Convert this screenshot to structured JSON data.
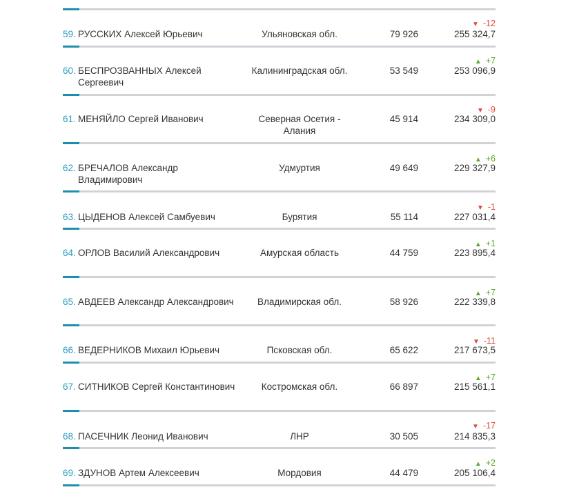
{
  "rows": [
    {
      "num": "59.",
      "name": "РУССКИХ Алексей Юрьевич",
      "region": "Ульяновская обл.",
      "votes": "79 926",
      "income": "255 324,7",
      "dir": "down",
      "arrow": "▼",
      "change": "-12"
    },
    {
      "num": "60.",
      "name": "БЕСПРОЗВАННЫХ Алексей Сергеевич",
      "region": "Калининградская обл.",
      "votes": "53 549",
      "income": "253 096,9",
      "dir": "up",
      "arrow": "▲",
      "change": "+7"
    },
    {
      "num": "61.",
      "name": "МЕНЯЙЛО Сергей Иванович",
      "region": "Северная Осетия - Алания",
      "votes": "45 914",
      "income": "234 309,0",
      "dir": "down",
      "arrow": "▼",
      "change": "-9"
    },
    {
      "num": "62.",
      "name": "БРЕЧАЛОВ Александр Владимирович",
      "region": "Удмуртия",
      "votes": "49 649",
      "income": "229 327,9",
      "dir": "up",
      "arrow": "▲",
      "change": "+6"
    },
    {
      "num": "63.",
      "name": "ЦЫДЕНОВ Алексей Самбуевич",
      "region": "Бурятия",
      "votes": "55 114",
      "income": "227 031,4",
      "dir": "down",
      "arrow": "▼",
      "change": "-1"
    },
    {
      "num": "64.",
      "name": "ОРЛОВ Василий Александрович",
      "region": "Амурская область",
      "votes": "44 759",
      "income": "223 895,4",
      "dir": "up",
      "arrow": "▲",
      "change": "+1"
    },
    {
      "num": "65.",
      "name": "АВДЕЕВ Александр Александрович",
      "region": "Владимирская обл.",
      "votes": "58 926",
      "income": "222 339,8",
      "dir": "up",
      "arrow": "▲",
      "change": "+7"
    },
    {
      "num": "66.",
      "name": "ВЕДЕРНИКОВ Михаил Юрьевич",
      "region": "Псковская обл.",
      "votes": "65 622",
      "income": "217 673,5",
      "dir": "down",
      "arrow": "▼",
      "change": "-11"
    },
    {
      "num": "67.",
      "name": "СИТНИКОВ Сергей Константинович",
      "region": "Костромская обл.",
      "votes": "66 897",
      "income": "215 561,1",
      "dir": "up",
      "arrow": "▲",
      "change": "+7"
    },
    {
      "num": "68.",
      "name": "ПАСЕЧНИК Леонид Иванович",
      "region": "ЛНР",
      "votes": "30 505",
      "income": "214 835,3",
      "dir": "down",
      "arrow": "▼",
      "change": "-17"
    },
    {
      "num": "69.",
      "name": "ЗДУНОВ Артем Алексеевич",
      "region": "Мордовия",
      "votes": "44 479",
      "income": "205 106,4",
      "dir": "up",
      "arrow": "▲",
      "change": "+2"
    }
  ]
}
